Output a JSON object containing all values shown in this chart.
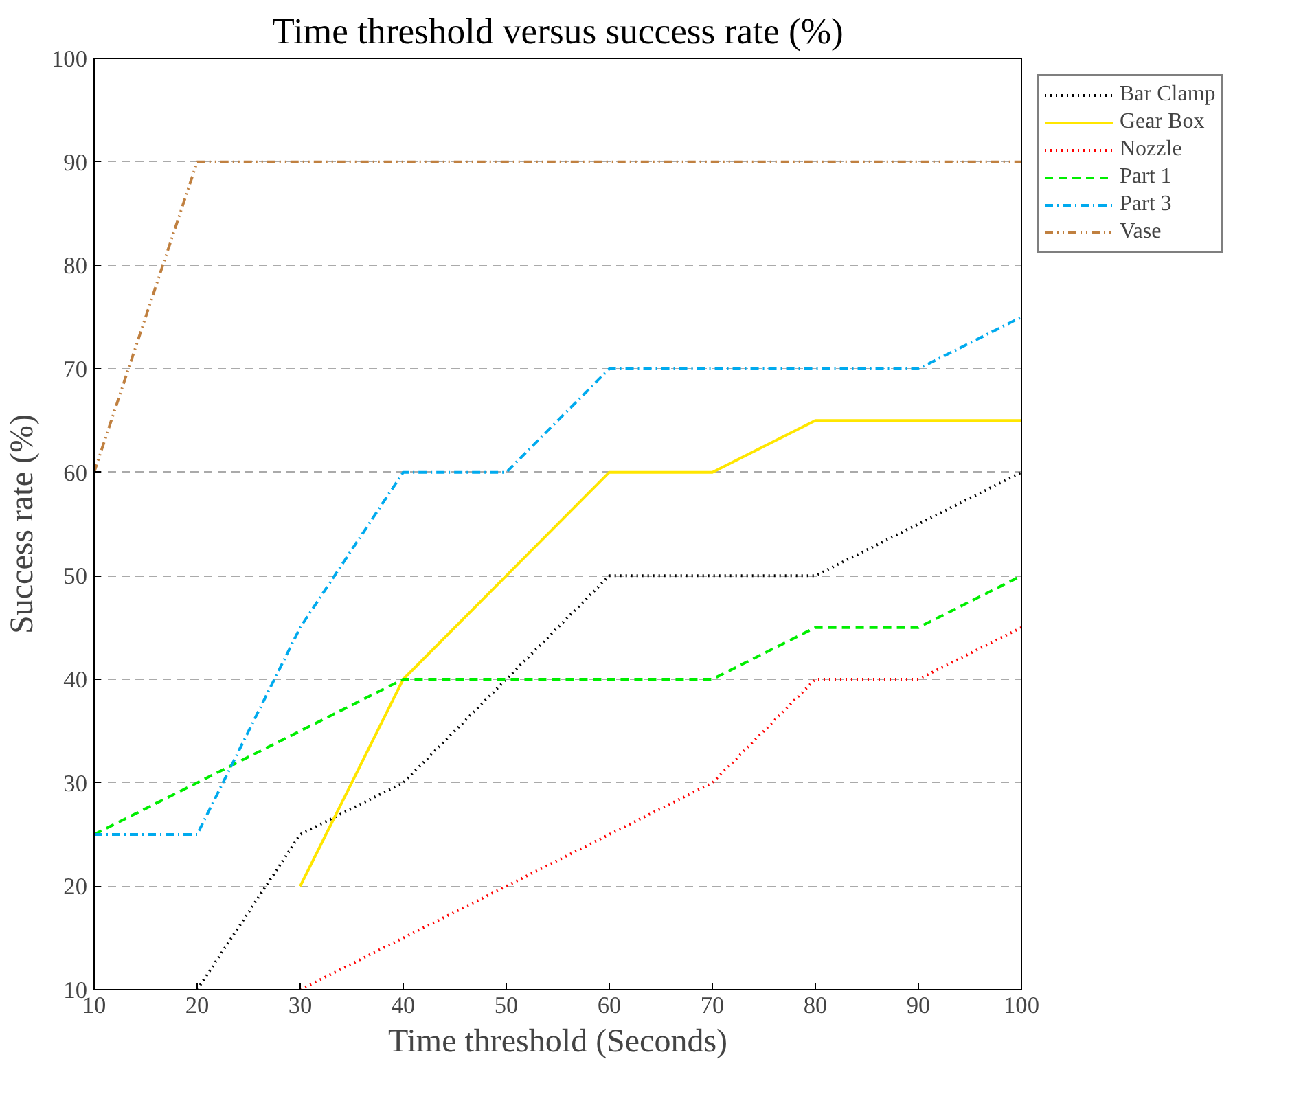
{
  "chart_data": {
    "type": "line",
    "title": "Time threshold versus success rate (%)",
    "xlabel": "Time threshold (Seconds)",
    "ylabel": "Success rate (%)",
    "x": [
      10,
      20,
      30,
      40,
      50,
      60,
      70,
      80,
      90,
      100
    ],
    "series": [
      {
        "name": "Bar Clamp",
        "color": "#000000",
        "line_style": "dotted",
        "values": [
          null,
          10,
          25,
          30,
          40,
          50,
          50,
          50,
          55,
          60
        ]
      },
      {
        "name": "Gear Box",
        "color": "#ffe600",
        "line_style": "solid",
        "values": [
          null,
          null,
          20,
          40,
          50,
          60,
          60,
          65,
          65,
          65
        ]
      },
      {
        "name": "Nozzle",
        "color": "#ff0000",
        "line_style": "dotted",
        "values": [
          null,
          null,
          10,
          15,
          20,
          25,
          30,
          40,
          40,
          45
        ]
      },
      {
        "name": "Part 1",
        "color": "#00ee00",
        "line_style": "dashed",
        "values": [
          25,
          30,
          35,
          40,
          40,
          40,
          40,
          45,
          45,
          50
        ]
      },
      {
        "name": "Part 3",
        "color": "#00aaee",
        "line_style": "dashdot",
        "values": [
          25,
          25,
          45,
          60,
          60,
          70,
          70,
          70,
          70,
          75
        ]
      },
      {
        "name": "Vase",
        "color": "#c08040",
        "line_style": "dashdotdot",
        "values": [
          60,
          90,
          90,
          90,
          90,
          90,
          90,
          90,
          90,
          90
        ]
      }
    ],
    "xlim": [
      10,
      100
    ],
    "ylim": [
      10,
      100
    ],
    "xticks": [
      10,
      20,
      30,
      40,
      50,
      60,
      70,
      80,
      90,
      100
    ],
    "yticks": [
      10,
      20,
      30,
      40,
      50,
      60,
      70,
      80,
      90,
      100
    ],
    "grid": "y",
    "legend": "top right",
    "marker": "none"
  }
}
